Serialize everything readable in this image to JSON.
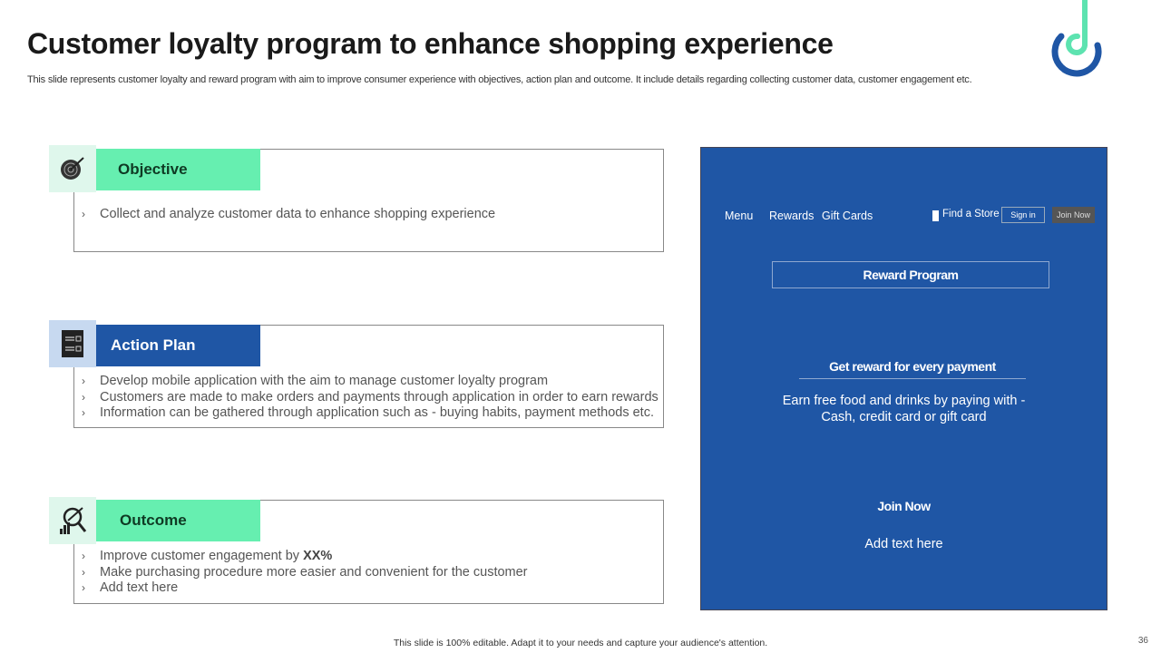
{
  "title": "Customer loyalty program to enhance shopping experience",
  "subtitle": "This slide represents customer loyalty and reward program with aim to improve consumer experience with objectives, action plan and outcome. It include details regarding collecting customer data, customer engagement etc.",
  "sections": [
    {
      "label": "Objective",
      "icon": "target-icon",
      "bullets": [
        "Collect and analyze customer data to enhance shopping experience"
      ]
    },
    {
      "label": "Action Plan",
      "icon": "checklist-icon",
      "bullets": [
        "Develop mobile application with the aim to manage customer loyalty program",
        "Customers are made to make orders and payments through application in order to earn rewards",
        "Information can be gathered through application such as - buying habits, payment methods etc."
      ]
    },
    {
      "label": "Outcome",
      "icon": "analytics-search-icon",
      "bullets": [
        "Improve customer engagement by ",
        "Make purchasing procedure more easier and convenient for the customer",
        "Add text here"
      ],
      "highlight": "XX%"
    }
  ],
  "panel": {
    "nav": {
      "menu": "Menu",
      "rewards": "Rewards",
      "gift_cards": "Gift Cards",
      "find_store": "Find a Store",
      "sign_in": "Sign in",
      "join_now": "Join Now"
    },
    "reward_program": "Reward Program",
    "headline": "Get reward for every payment",
    "body1": "Earn free food and drinks by paying with -",
    "body2": "Cash, credit card or gift card",
    "join_heading": "Join Now",
    "join_text": "Add text here"
  },
  "colors": {
    "green": "#66efb0",
    "blue": "#1f56a5",
    "green_light": "#dff7ec",
    "blue_light": "#c7d9f0"
  },
  "footer": "This slide is 100% editable. Adapt it to your needs and capture your audience's attention.",
  "page_number": "36"
}
